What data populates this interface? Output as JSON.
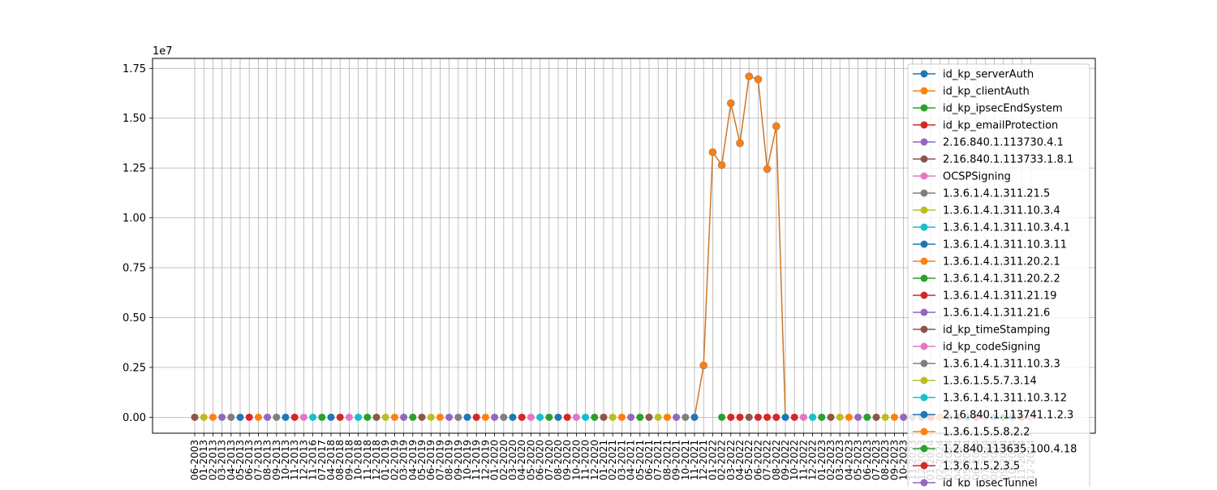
{
  "chart_data": {
    "type": "line",
    "title": "",
    "xlabel": "",
    "ylabel": "",
    "y_offset_label": "1e7",
    "ylim": [
      -0.08,
      1.8
    ],
    "y_ticks": [
      "0.00",
      "0.25",
      "0.50",
      "0.75",
      "1.00",
      "1.25",
      "1.50",
      "1.75"
    ],
    "y_tick_values": [
      0,
      0.25,
      0.5,
      0.75,
      1.0,
      1.25,
      1.5,
      1.75
    ],
    "grid": true,
    "legend_position": "upper-right",
    "categories": [
      "06-2003",
      "01-2013",
      "02-2013",
      "03-2013",
      "04-2013",
      "05-2013",
      "06-2013",
      "07-2013",
      "08-2013",
      "09-2013",
      "10-2013",
      "11-2013",
      "12-2013",
      "11-2016",
      "07-2017",
      "04-2018",
      "08-2018",
      "09-2018",
      "10-2018",
      "11-2018",
      "12-2018",
      "01-2019",
      "02-2019",
      "03-2019",
      "04-2019",
      "05-2019",
      "06-2019",
      "07-2019",
      "08-2019",
      "09-2019",
      "10-2019",
      "11-2019",
      "12-2019",
      "01-2020",
      "02-2020",
      "03-2020",
      "04-2020",
      "05-2020",
      "06-2020",
      "07-2020",
      "08-2020",
      "09-2020",
      "10-2020",
      "11-2020",
      "12-2020",
      "01-2021",
      "02-2021",
      "03-2021",
      "04-2021",
      "05-2021",
      "06-2021",
      "07-2021",
      "08-2021",
      "09-2021",
      "10-2021",
      "11-2021",
      "12-2021",
      "01-2022",
      "02-2022",
      "03-2022",
      "04-2022",
      "05-2022",
      "06-2022",
      "07-2022",
      "08-2022",
      "09-2022",
      "10-2022",
      "11-2022",
      "12-2022",
      "01-2023",
      "02-2023",
      "03-2023",
      "04-2023",
      "05-2023",
      "06-2023",
      "07-2023",
      "08-2023",
      "09-2023",
      "10-2023",
      "11-2023",
      "12-2023",
      "01-2024",
      "02-2024",
      "03-2024",
      "04-2024",
      "05-2024",
      "06-2024",
      "07-2024",
      "08-2024",
      "09-2024",
      "10-2024",
      "11-2024",
      "12-2024"
    ],
    "main_series_values": {
      "12-2021": 0.26,
      "01-2022": 1.33,
      "02-2022": 1.265,
      "03-2022": 1.575,
      "04-2022": 1.375,
      "05-2022": 1.71,
      "06-2022": 1.695,
      "07-2022": 1.245,
      "08-2022": 1.46
    },
    "series": [
      {
        "name": "id_kp_serverAuth",
        "color": "#1f77b4"
      },
      {
        "name": "id_kp_clientAuth",
        "color": "#ff7f0e"
      },
      {
        "name": "id_kp_ipsecEndSystem",
        "color": "#2ca02c"
      },
      {
        "name": "id_kp_emailProtection",
        "color": "#d62728"
      },
      {
        "name": "2.16.840.1.113730.4.1",
        "color": "#9467bd"
      },
      {
        "name": "2.16.840.1.113733.1.8.1",
        "color": "#8c564b"
      },
      {
        "name": "OCSPSigning",
        "color": "#e377c2"
      },
      {
        "name": "1.3.6.1.4.1.311.21.5",
        "color": "#7f7f7f"
      },
      {
        "name": "1.3.6.1.4.1.311.10.3.4",
        "color": "#bcbd22"
      },
      {
        "name": "1.3.6.1.4.1.311.10.3.4.1",
        "color": "#17becf"
      },
      {
        "name": "1.3.6.1.4.1.311.10.3.11",
        "color": "#1f77b4"
      },
      {
        "name": "1.3.6.1.4.1.311.20.2.1",
        "color": "#ff7f0e"
      },
      {
        "name": "1.3.6.1.4.1.311.20.2.2",
        "color": "#2ca02c"
      },
      {
        "name": "1.3.6.1.4.1.311.21.19",
        "color": "#d62728"
      },
      {
        "name": "1.3.6.1.4.1.311.21.6",
        "color": "#9467bd"
      },
      {
        "name": "id_kp_timeStamping",
        "color": "#8c564b"
      },
      {
        "name": "id_kp_codeSigning",
        "color": "#e377c2"
      },
      {
        "name": "1.3.6.1.4.1.311.10.3.3",
        "color": "#7f7f7f"
      },
      {
        "name": "1.3.6.1.5.5.7.3.14",
        "color": "#bcbd22"
      },
      {
        "name": "1.3.6.1.4.1.311.10.3.12",
        "color": "#17becf"
      },
      {
        "name": "2.16.840.1.113741.1.2.3",
        "color": "#1f77b4"
      },
      {
        "name": "1.3.6.1.5.5.8.2.2",
        "color": "#ff7f0e"
      },
      {
        "name": "1.2.840.113635.100.4.18",
        "color": "#2ca02c"
      },
      {
        "name": "1.3.6.1.5.2.3.5",
        "color": "#d62728"
      },
      {
        "name": "id_kp_ipsecTunnel",
        "color": "#9467bd"
      }
    ]
  }
}
